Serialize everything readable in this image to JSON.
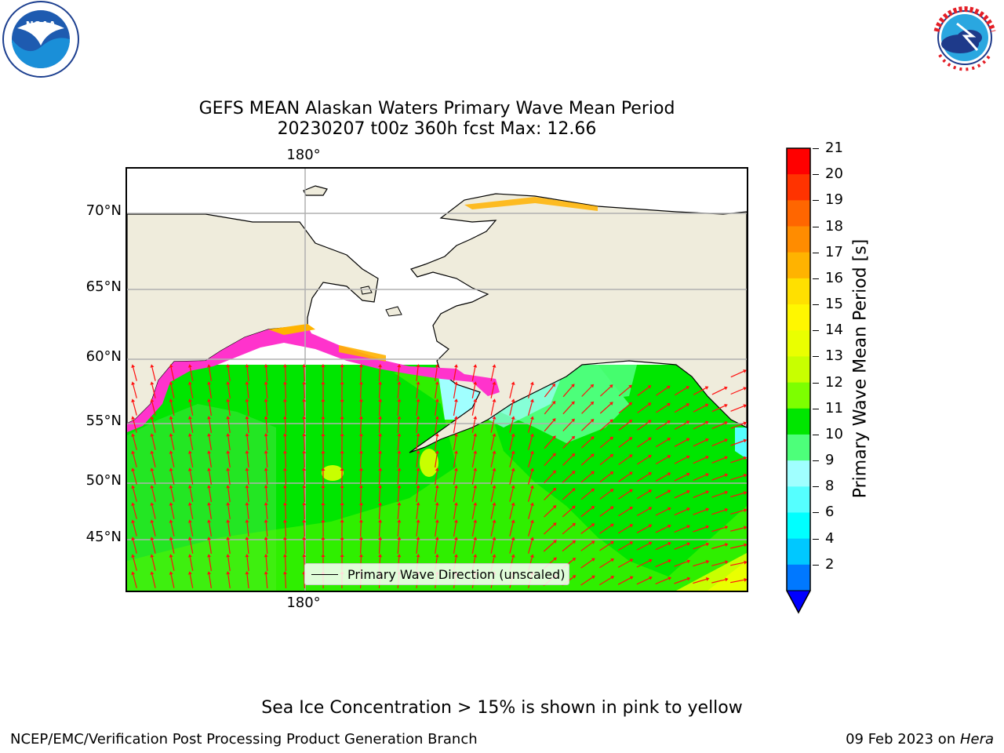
{
  "header": {
    "noaa_logo": {
      "name": "noaa-logo",
      "text": "NOAA",
      "ring_text": "NATIONAL OCEANIC AND ATMOSPHERIC ADMINISTRATION · U.S. DEPARTMENT OF COMMERCE"
    },
    "nws_logo": {
      "name": "nws-logo",
      "ring_text": "NATIONAL WEATHER SERVICE"
    }
  },
  "title": {
    "line1": "GEFS MEAN Alaskan Waters Primary Wave Mean Period",
    "line2": "20230207 t00z 360h fcst   Max: 12.66"
  },
  "map": {
    "lon_labels": [
      "180°",
      "180°"
    ],
    "lat_labels": [
      "70°N",
      "65°N",
      "60°N",
      "55°N",
      "50°N",
      "45°N"
    ],
    "land_color": "#efecdc",
    "grid_color": "#b0b0b0",
    "arrow_color": "#ff1010",
    "legend_label": "Primary Wave Direction (unscaled)"
  },
  "colorbar": {
    "label": "Primary Wave Mean Period [s]",
    "ticks": [
      "21",
      "20",
      "19",
      "18",
      "17",
      "16",
      "15",
      "14",
      "13",
      "12",
      "11",
      "10",
      "9",
      "8",
      "6",
      "4",
      "2"
    ],
    "colors": [
      "#ff0000",
      "#ff3300",
      "#ff6600",
      "#ff8c00",
      "#ffb300",
      "#ffe000",
      "#fff700",
      "#eaff00",
      "#c8ff00",
      "#7dff00",
      "#00e600",
      "#4dff7a",
      "#a0ffff",
      "#55ffff",
      "#00ffff",
      "#00c8ff",
      "#0078ff"
    ],
    "extend_color": "#0000ff"
  },
  "footnote": "Sea Ice Concentration > 15% is shown in pink to yellow",
  "footer": {
    "left": "NCEP/EMC/Verification Post Processing Product Generation Branch",
    "right_prefix": "09 Feb 2023 on ",
    "right_host": "Hera"
  }
}
